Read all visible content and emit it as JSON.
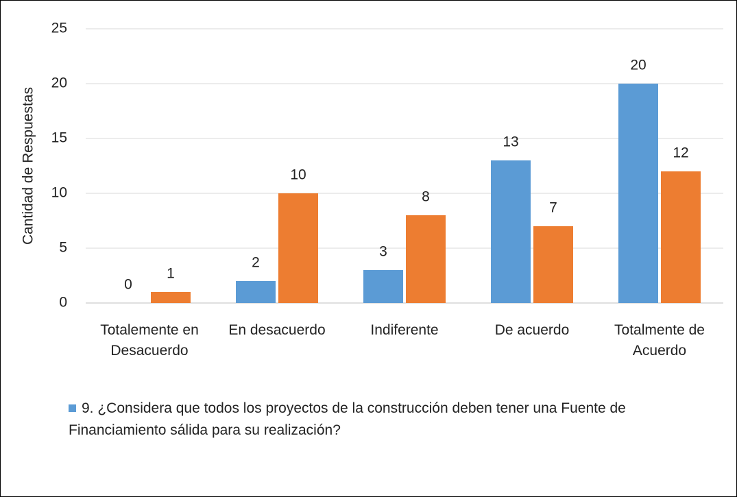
{
  "chart_data": {
    "type": "bar",
    "y_axis_label": "Cantidad de Respuestas",
    "categories": [
      "Totalemente en Desacuerdo",
      "En desacuerdo",
      "Indiferente",
      "De acuerdo",
      "Totalmente de Acuerdo"
    ],
    "series": [
      {
        "name": "9. ¿Considera que todos los proyectos de la construcción deben tener una Fuente de Financiamiento sálida para su realización?",
        "color": "#5b9bd5",
        "values": [
          0,
          2,
          3,
          13,
          20
        ]
      },
      {
        "color": "#ed7d31",
        "values": [
          1,
          10,
          8,
          7,
          12
        ]
      }
    ],
    "ylim": [
      0,
      25
    ],
    "yticks": [
      0,
      5,
      10,
      15,
      20,
      25
    ],
    "grid": true
  }
}
